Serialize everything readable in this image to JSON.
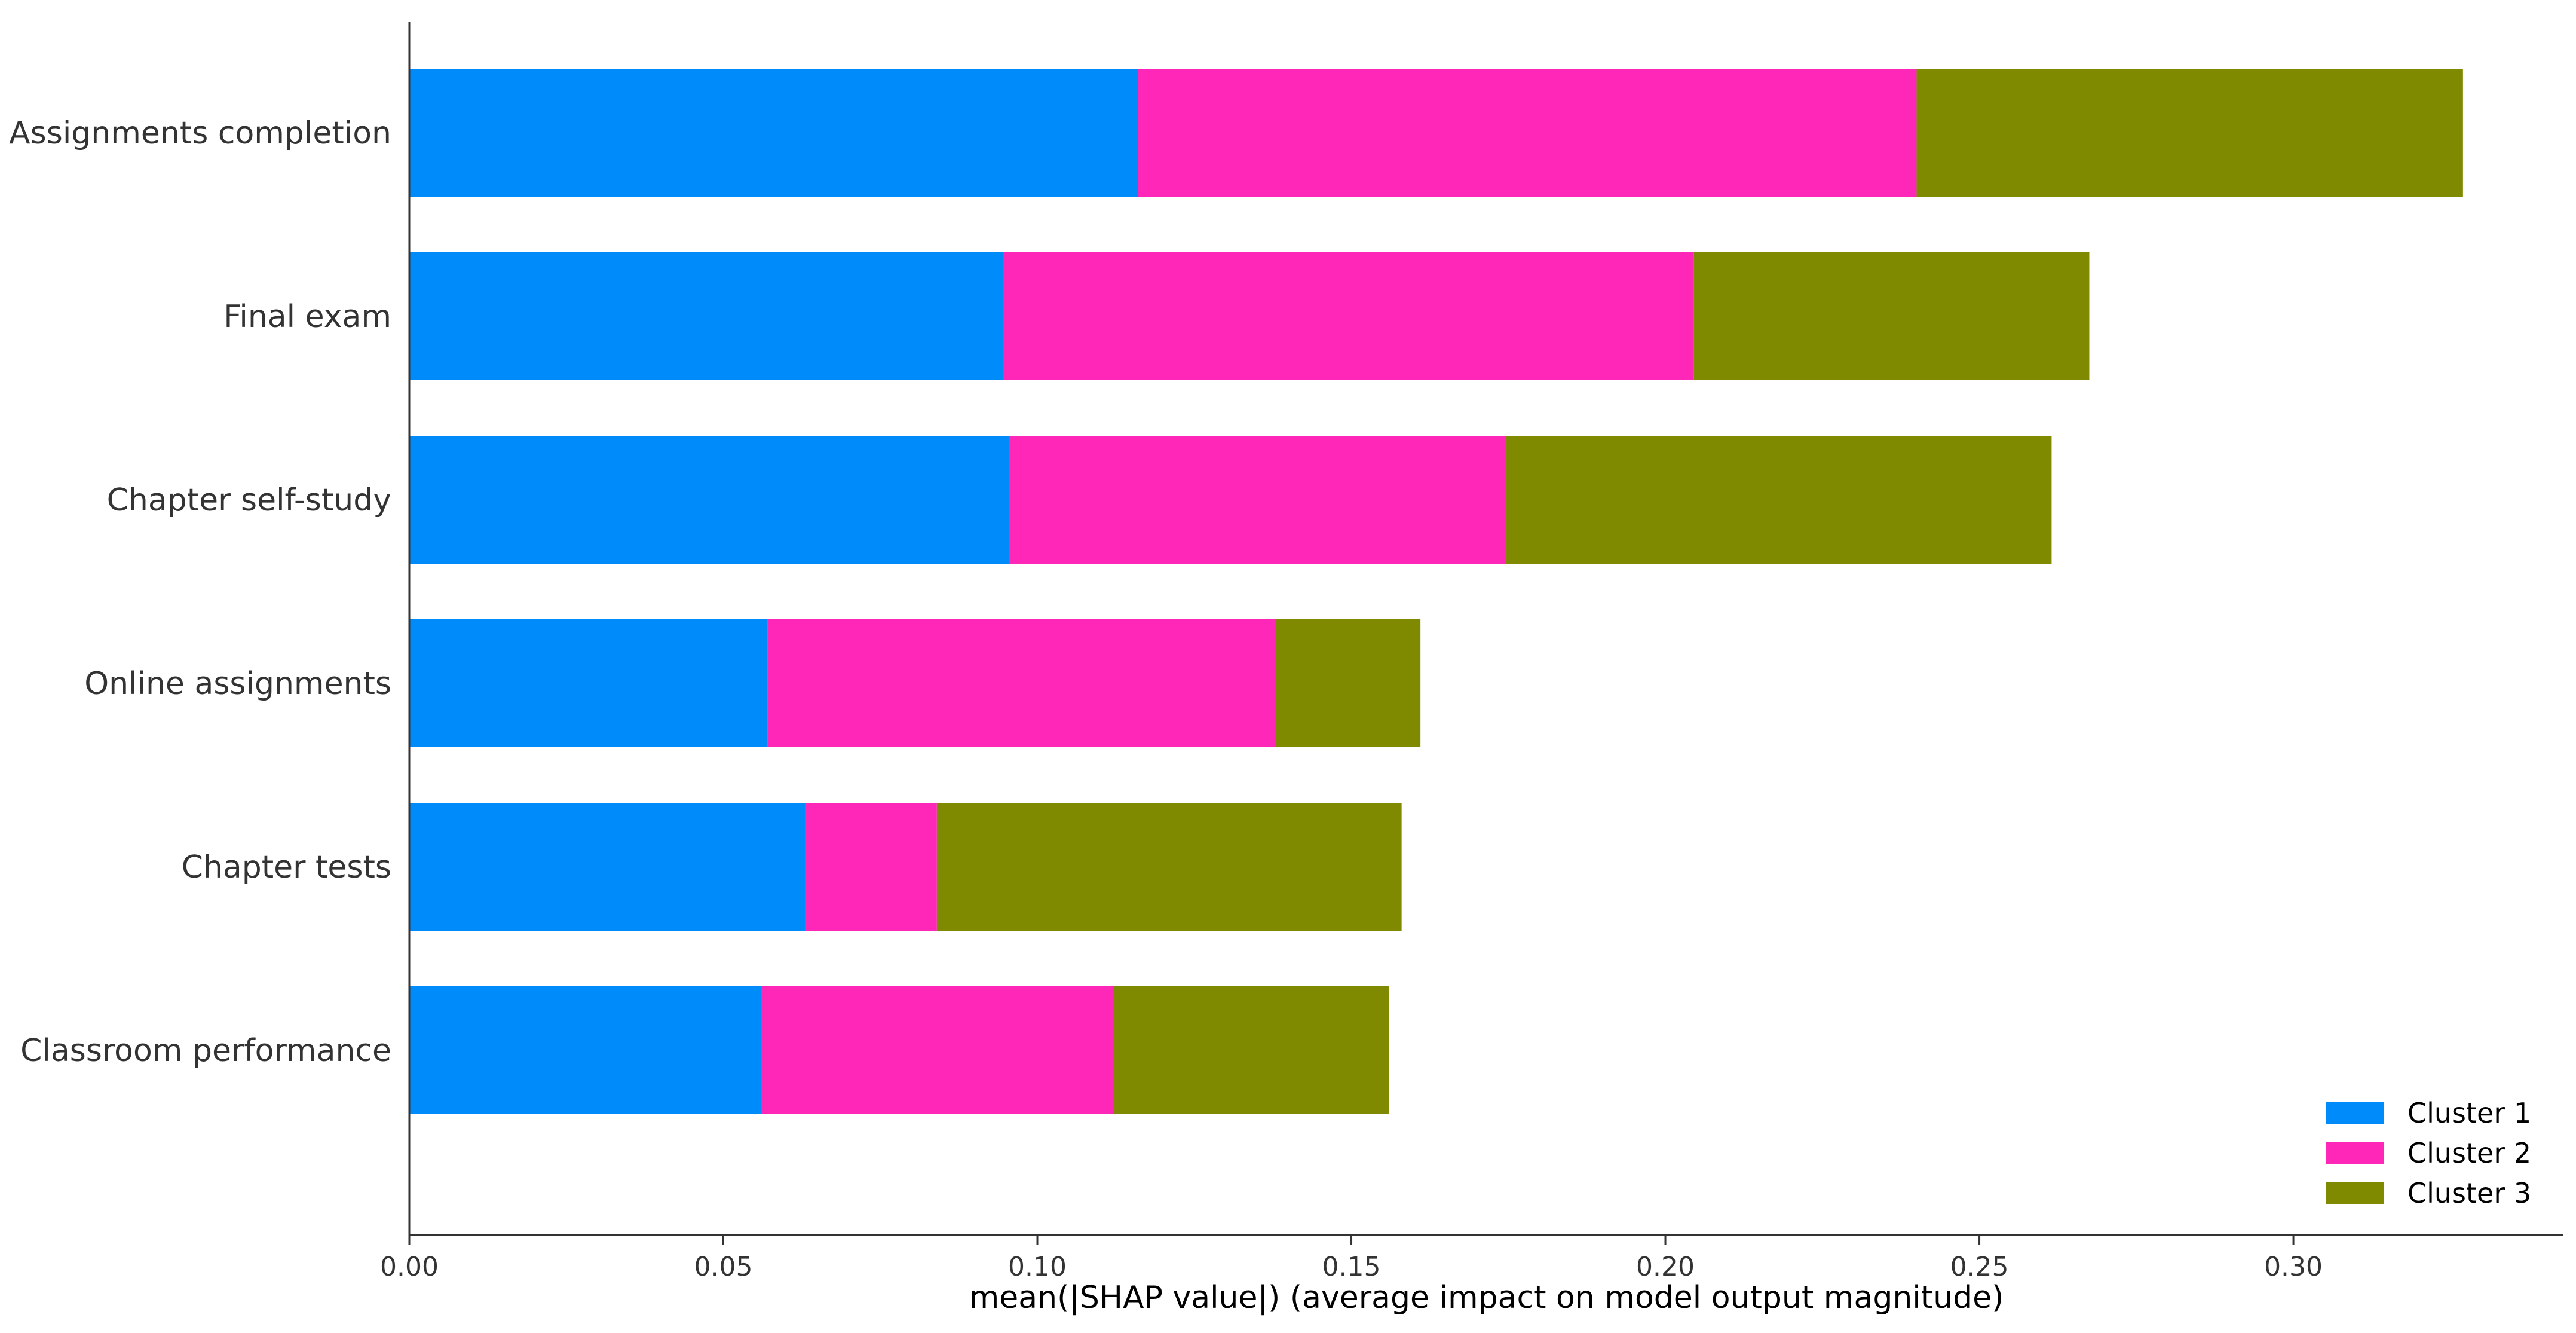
{
  "chart_data": {
    "type": "bar",
    "orientation": "horizontal",
    "stacked": true,
    "categories": [
      "Assignments completion",
      "Final exam",
      "Chapter self-study",
      "Online assignments",
      "Chapter tests",
      "Classroom performance"
    ],
    "series": [
      {
        "name": "Cluster 1",
        "color": "#008bfb",
        "values": [
          0.116,
          0.0945,
          0.0955,
          0.057,
          0.063,
          0.056
        ]
      },
      {
        "name": "Cluster 2",
        "color": "#ff27b8",
        "values": [
          0.124,
          0.11,
          0.079,
          0.081,
          0.021,
          0.056
        ]
      },
      {
        "name": "Cluster 3",
        "color": "#7f8a00",
        "values": [
          0.087,
          0.063,
          0.087,
          0.023,
          0.074,
          0.044
        ]
      }
    ],
    "xlabel": "mean(|SHAP value|) (average impact on model output magnitude)",
    "ylabel": "",
    "xlim": [
      0,
      0.343
    ],
    "xticks": [
      0.0,
      0.05,
      0.1,
      0.15,
      0.2,
      0.25,
      0.3
    ],
    "xtick_labels": [
      "0.00",
      "0.05",
      "0.10",
      "0.15",
      "0.20",
      "0.25",
      "0.30"
    ],
    "grid": false,
    "legend_position": "bottom-right"
  }
}
